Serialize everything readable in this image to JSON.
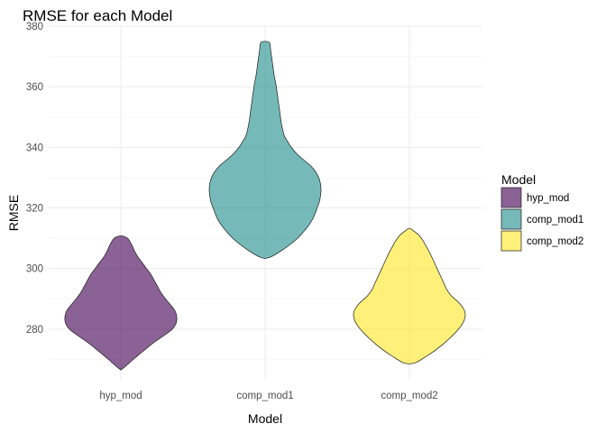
{
  "chart_data": {
    "type": "violin",
    "title": "RMSE for each Model",
    "xlabel": "Model",
    "ylabel": "RMSE",
    "ylim": [
      263,
      380
    ],
    "yticks": [
      280,
      300,
      320,
      340,
      360,
      380
    ],
    "grid": true,
    "legend": {
      "title": "Model",
      "position": "right",
      "entries": [
        "hyp_mod",
        "comp_mod1",
        "comp_mod2"
      ]
    },
    "categories": [
      "hyp_mod",
      "comp_mod1",
      "comp_mod2"
    ],
    "series": [
      {
        "name": "hyp_mod",
        "color": "#440154",
        "min": 266.5,
        "max": 310.8,
        "density": [
          [
            266.5,
            0.0
          ],
          [
            268,
            0.1
          ],
          [
            270,
            0.22
          ],
          [
            272,
            0.35
          ],
          [
            274,
            0.48
          ],
          [
            276,
            0.62
          ],
          [
            278,
            0.78
          ],
          [
            280,
            0.92
          ],
          [
            282,
            0.99
          ],
          [
            284,
            1.0
          ],
          [
            286,
            0.97
          ],
          [
            288,
            0.89
          ],
          [
            290,
            0.8
          ],
          [
            292,
            0.72
          ],
          [
            294,
            0.66
          ],
          [
            296,
            0.6
          ],
          [
            298,
            0.54
          ],
          [
            300,
            0.46
          ],
          [
            302,
            0.38
          ],
          [
            304,
            0.3
          ],
          [
            306,
            0.24
          ],
          [
            308,
            0.19
          ],
          [
            310,
            0.12
          ],
          [
            310.8,
            0.0
          ]
        ]
      },
      {
        "name": "comp_mod1",
        "color": "#21908C",
        "min": 303.3,
        "max": 375.0,
        "density": [
          [
            303.3,
            0.0
          ],
          [
            304,
            0.12
          ],
          [
            306,
            0.3
          ],
          [
            308,
            0.45
          ],
          [
            310,
            0.58
          ],
          [
            312,
            0.68
          ],
          [
            314,
            0.77
          ],
          [
            316,
            0.84
          ],
          [
            318,
            0.89
          ],
          [
            320,
            0.93
          ],
          [
            322,
            0.97
          ],
          [
            324,
            0.99
          ],
          [
            326,
            1.0
          ],
          [
            328,
            0.99
          ],
          [
            330,
            0.96
          ],
          [
            332,
            0.9
          ],
          [
            334,
            0.81
          ],
          [
            336,
            0.68
          ],
          [
            338,
            0.56
          ],
          [
            340,
            0.47
          ],
          [
            342,
            0.4
          ],
          [
            344,
            0.34
          ],
          [
            348,
            0.29
          ],
          [
            352,
            0.26
          ],
          [
            356,
            0.23
          ],
          [
            360,
            0.2
          ],
          [
            364,
            0.16
          ],
          [
            368,
            0.13
          ],
          [
            372,
            0.1
          ],
          [
            374.5,
            0.08
          ],
          [
            375,
            0.0
          ]
        ]
      },
      {
        "name": "comp_mod2",
        "color": "#FDE725",
        "min": 268.5,
        "max": 313.3,
        "density": [
          [
            268.5,
            0.0
          ],
          [
            269,
            0.12
          ],
          [
            271,
            0.3
          ],
          [
            273,
            0.46
          ],
          [
            275,
            0.6
          ],
          [
            277,
            0.72
          ],
          [
            279,
            0.83
          ],
          [
            281,
            0.92
          ],
          [
            283,
            0.98
          ],
          [
            285,
            1.0
          ],
          [
            287,
            0.96
          ],
          [
            289,
            0.87
          ],
          [
            291,
            0.75
          ],
          [
            293,
            0.67
          ],
          [
            295,
            0.62
          ],
          [
            297,
            0.57
          ],
          [
            299,
            0.52
          ],
          [
            301,
            0.47
          ],
          [
            303,
            0.42
          ],
          [
            305,
            0.37
          ],
          [
            307,
            0.31
          ],
          [
            309,
            0.25
          ],
          [
            311,
            0.17
          ],
          [
            312.5,
            0.07
          ],
          [
            313.3,
            0.0
          ]
        ]
      }
    ]
  }
}
